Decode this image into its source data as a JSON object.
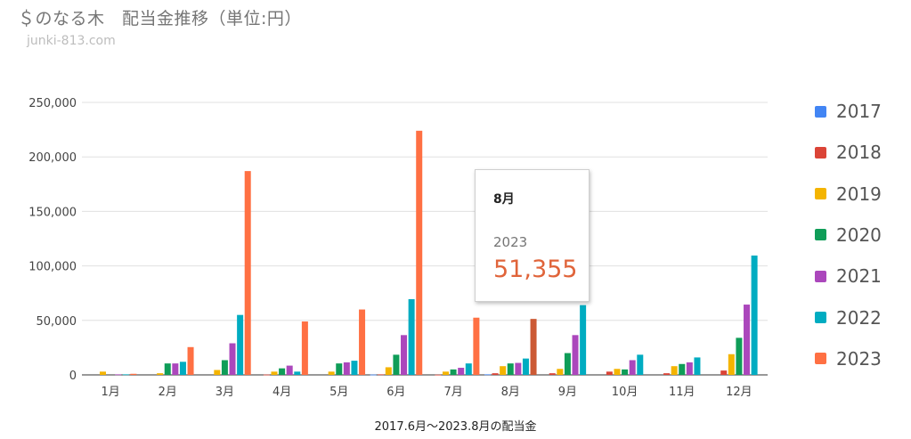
{
  "header": {
    "title": "＄のなる木　配当金推移（単位:円）",
    "subtitle": "junki-813.com"
  },
  "caption": "2017.6月～2023.8月の配当金",
  "chart_data": {
    "type": "bar",
    "categories": [
      "1月",
      "2月",
      "3月",
      "4月",
      "5月",
      "6月",
      "7月",
      "8月",
      "9月",
      "10月",
      "11月",
      "12月"
    ],
    "ylim": [
      0,
      250000
    ],
    "yticks": [
      0,
      50000,
      100000,
      150000,
      200000,
      250000
    ],
    "ytick_labels": [
      "0",
      "50,000",
      "100,000",
      "150,000",
      "200,000",
      "250,000"
    ],
    "grid": true,
    "legend_position": "right",
    "series": [
      {
        "name": "2017",
        "color": "#4285f4",
        "values": [
          0,
          0,
          0,
          0,
          0,
          300,
          0,
          500,
          0,
          0,
          0,
          0
        ]
      },
      {
        "name": "2018",
        "color": "#db4437",
        "values": [
          0,
          0,
          0,
          300,
          0,
          500,
          200,
          1500,
          1500,
          3000,
          1500,
          4000
        ]
      },
      {
        "name": "2019",
        "color": "#f4b400",
        "values": [
          3000,
          1500,
          4500,
          3000,
          3000,
          7000,
          3000,
          8000,
          5500,
          5500,
          8000,
          19000
        ]
      },
      {
        "name": "2020",
        "color": "#0f9d58",
        "values": [
          0,
          10500,
          13500,
          6000,
          10500,
          18500,
          5000,
          10500,
          20000,
          5000,
          10000,
          34000
        ]
      },
      {
        "name": "2021",
        "color": "#ab47bc",
        "values": [
          500,
          10500,
          29000,
          8500,
          11500,
          36500,
          6500,
          11000,
          36500,
          13500,
          11500,
          64500
        ]
      },
      {
        "name": "2022",
        "color": "#00acc1",
        "values": [
          500,
          12000,
          55000,
          3000,
          13000,
          69500,
          10500,
          15000,
          64000,
          18500,
          16000,
          109500
        ]
      },
      {
        "name": "2023",
        "color": "#ff7043",
        "values": [
          1000,
          25500,
          187000,
          49000,
          60000,
          224000,
          52500,
          51355,
          null,
          null,
          null,
          null
        ]
      }
    ],
    "highlight": {
      "category_index": 7,
      "series_index": 6,
      "color": "#cc5a35"
    }
  },
  "tooltip": {
    "category": "8月",
    "series": "2023",
    "value": "51,355"
  }
}
